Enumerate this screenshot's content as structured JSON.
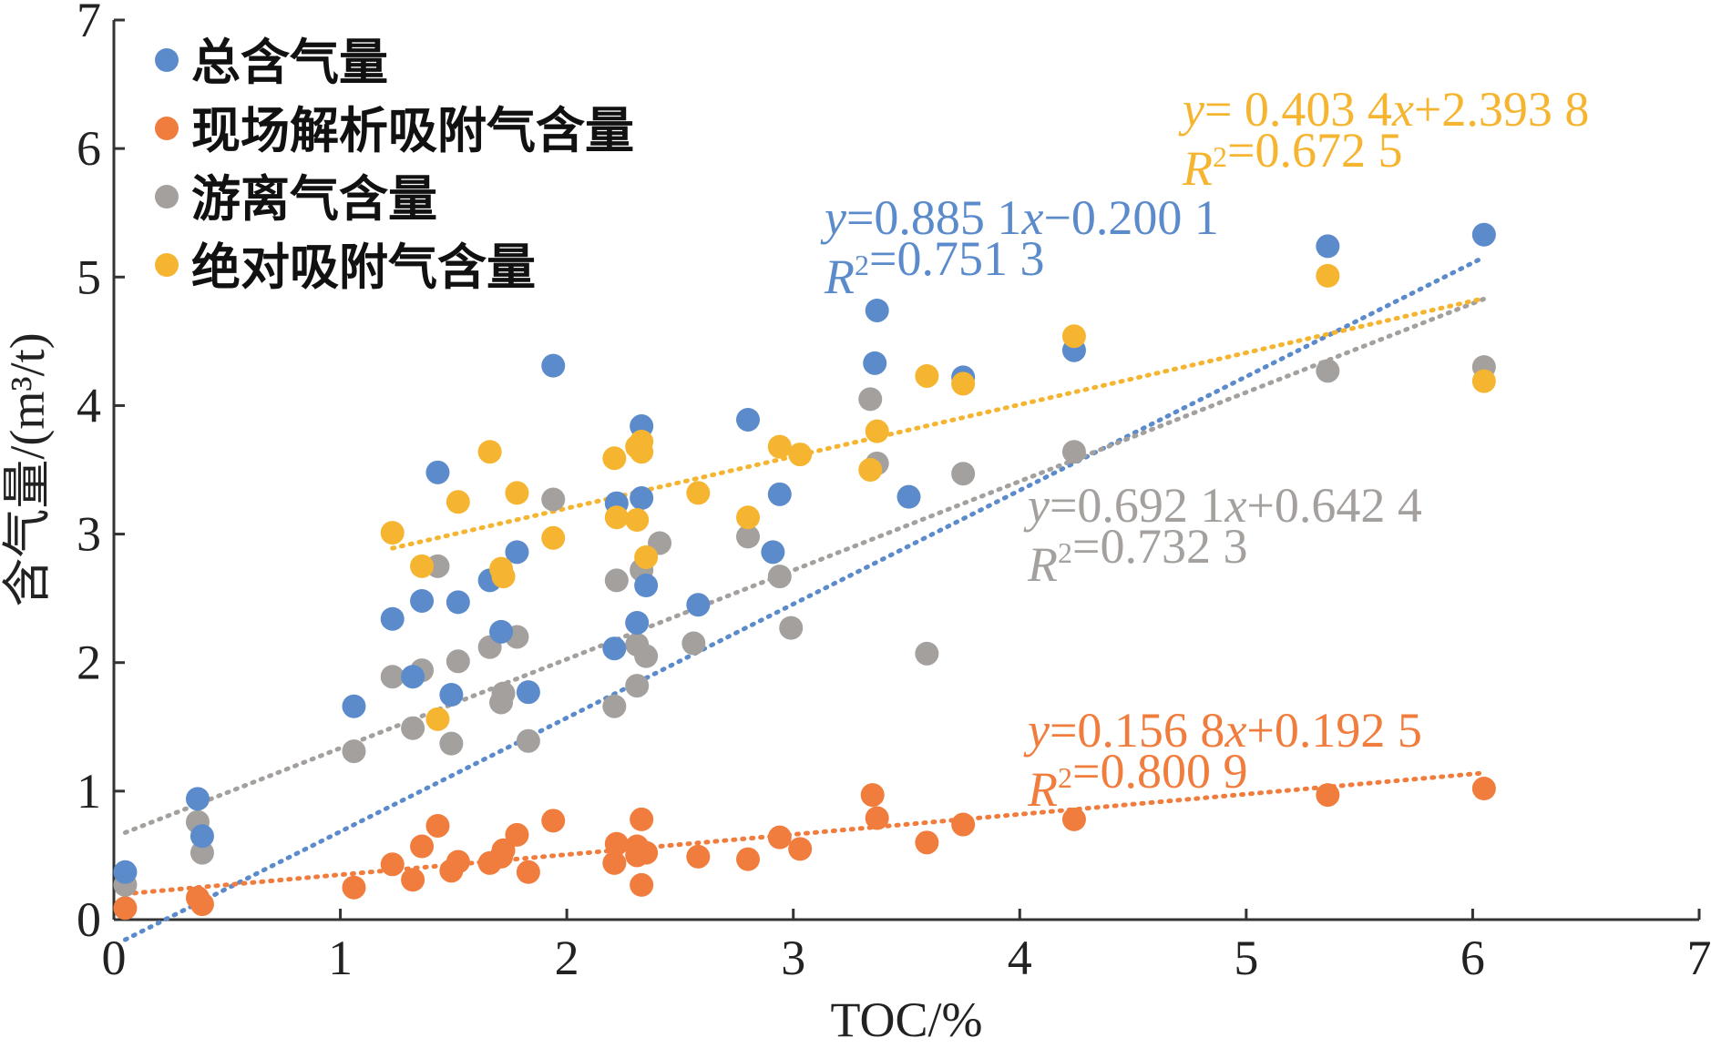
{
  "chart_data": {
    "type": "scatter",
    "xlabel": "TOC/%",
    "ylabel": "含气量/(m³/t)",
    "xlim": [
      0,
      7
    ],
    "ylim": [
      0,
      7
    ],
    "x_ticks": [
      "0",
      "1",
      "2",
      "3",
      "4",
      "5",
      "6",
      "7"
    ],
    "y_ticks": [
      "0",
      "1",
      "2",
      "3",
      "4",
      "5",
      "6",
      "7"
    ],
    "grid": false,
    "legend_position": "top-left",
    "series": [
      {
        "name": "总含气量",
        "color": "#5B8BCB",
        "points": [
          [
            0.05,
            0.37
          ],
          [
            0.37,
            0.94
          ],
          [
            0.39,
            0.65
          ],
          [
            1.06,
            1.66
          ],
          [
            1.23,
            2.34
          ],
          [
            1.32,
            1.89
          ],
          [
            1.36,
            2.48
          ],
          [
            1.43,
            3.48
          ],
          [
            1.49,
            1.75
          ],
          [
            1.52,
            2.47
          ],
          [
            1.66,
            2.64
          ],
          [
            1.71,
            2.24
          ],
          [
            1.78,
            2.86
          ],
          [
            1.83,
            1.77
          ],
          [
            1.94,
            4.31
          ],
          [
            2.21,
            2.11
          ],
          [
            2.22,
            3.24
          ],
          [
            2.31,
            2.31
          ],
          [
            2.33,
            3.84
          ],
          [
            2.33,
            3.28
          ],
          [
            2.35,
            2.6
          ],
          [
            2.58,
            2.45
          ],
          [
            2.8,
            3.89
          ],
          [
            2.91,
            2.86
          ],
          [
            2.94,
            3.31
          ],
          [
            3.36,
            4.33
          ],
          [
            3.37,
            4.74
          ],
          [
            3.51,
            3.29
          ],
          [
            3.75,
            4.22
          ],
          [
            4.24,
            4.43
          ],
          [
            5.36,
            5.24
          ],
          [
            6.05,
            5.33
          ]
        ],
        "fit": {
          "slope": 0.8851,
          "intercept": -0.2001,
          "x_range": [
            0.05,
            6.05
          ]
        },
        "equation": "y=0.885 1x−0.200 1",
        "r2": "R2=0.751 3"
      },
      {
        "name": "现场解析吸附气含量",
        "color": "#F07D3E",
        "points": [
          [
            0.05,
            0.09
          ],
          [
            0.37,
            0.17
          ],
          [
            0.39,
            0.12
          ],
          [
            1.06,
            0.25
          ],
          [
            1.23,
            0.43
          ],
          [
            1.32,
            0.31
          ],
          [
            1.36,
            0.57
          ],
          [
            1.43,
            0.73
          ],
          [
            1.49,
            0.38
          ],
          [
            1.52,
            0.45
          ],
          [
            1.66,
            0.44
          ],
          [
            1.71,
            0.49
          ],
          [
            1.72,
            0.54
          ],
          [
            1.78,
            0.66
          ],
          [
            1.83,
            0.37
          ],
          [
            1.94,
            0.77
          ],
          [
            2.21,
            0.44
          ],
          [
            2.22,
            0.59
          ],
          [
            2.31,
            0.5
          ],
          [
            2.31,
            0.57
          ],
          [
            2.33,
            0.78
          ],
          [
            2.33,
            0.27
          ],
          [
            2.35,
            0.52
          ],
          [
            2.58,
            0.49
          ],
          [
            2.8,
            0.47
          ],
          [
            2.94,
            0.64
          ],
          [
            3.03,
            0.55
          ],
          [
            3.35,
            0.97
          ],
          [
            3.37,
            0.79
          ],
          [
            3.59,
            0.6
          ],
          [
            3.75,
            0.74
          ],
          [
            4.24,
            0.78
          ],
          [
            5.36,
            0.97
          ],
          [
            6.05,
            1.02
          ]
        ],
        "fit": {
          "slope": 0.1568,
          "intercept": 0.1925,
          "x_range": [
            0.05,
            6.05
          ]
        },
        "equation": "y=0.156 8x+0.192 5",
        "r2": "R2=0.800 9"
      },
      {
        "name": "游离气含量",
        "color": "#A3A09E",
        "points": [
          [
            0.05,
            0.27
          ],
          [
            0.37,
            0.76
          ],
          [
            0.39,
            0.52
          ],
          [
            1.06,
            1.31
          ],
          [
            1.23,
            1.89
          ],
          [
            1.32,
            1.49
          ],
          [
            1.36,
            1.94
          ],
          [
            1.43,
            2.75
          ],
          [
            1.49,
            1.37
          ],
          [
            1.52,
            2.01
          ],
          [
            1.66,
            2.12
          ],
          [
            1.71,
            1.69
          ],
          [
            1.72,
            1.76
          ],
          [
            1.78,
            2.2
          ],
          [
            1.83,
            1.39
          ],
          [
            1.94,
            3.27
          ],
          [
            2.21,
            1.66
          ],
          [
            2.22,
            2.64
          ],
          [
            2.31,
            1.82
          ],
          [
            2.31,
            2.14
          ],
          [
            2.33,
            2.72
          ],
          [
            2.35,
            2.05
          ],
          [
            2.41,
            2.93
          ],
          [
            2.56,
            2.15
          ],
          [
            2.8,
            2.98
          ],
          [
            2.94,
            2.67
          ],
          [
            2.99,
            2.27
          ],
          [
            3.34,
            4.05
          ],
          [
            3.37,
            3.55
          ],
          [
            3.59,
            2.07
          ],
          [
            3.75,
            3.47
          ],
          [
            4.24,
            3.64
          ],
          [
            5.36,
            4.27
          ],
          [
            6.05,
            4.3
          ]
        ],
        "fit": {
          "slope": 0.6921,
          "intercept": 0.6424,
          "x_range": [
            0.05,
            6.05
          ]
        },
        "equation": "y=0.692 1x+0.642 4",
        "r2": "R2=0.732 3"
      },
      {
        "name": "绝对吸附气含量",
        "color": "#F5B530",
        "points": [
          [
            1.23,
            3.01
          ],
          [
            1.36,
            2.75
          ],
          [
            1.43,
            1.56
          ],
          [
            1.52,
            3.25
          ],
          [
            1.66,
            3.64
          ],
          [
            1.71,
            2.73
          ],
          [
            1.72,
            2.67
          ],
          [
            1.78,
            3.32
          ],
          [
            1.94,
            2.97
          ],
          [
            2.21,
            3.59
          ],
          [
            2.22,
            3.13
          ],
          [
            2.31,
            3.68
          ],
          [
            2.31,
            3.11
          ],
          [
            2.33,
            3.72
          ],
          [
            2.33,
            3.64
          ],
          [
            2.35,
            2.82
          ],
          [
            2.58,
            3.32
          ],
          [
            2.8,
            3.13
          ],
          [
            2.94,
            3.68
          ],
          [
            3.03,
            3.62
          ],
          [
            3.34,
            3.5
          ],
          [
            3.37,
            3.8
          ],
          [
            3.59,
            4.23
          ],
          [
            3.75,
            4.17
          ],
          [
            4.24,
            4.54
          ],
          [
            5.36,
            5.01
          ],
          [
            6.05,
            4.19
          ]
        ],
        "fit": {
          "slope": 0.4034,
          "intercept": 2.3938,
          "x_range": [
            1.23,
            6.05
          ]
        },
        "equation": "y= 0.403 4x+2.393 8",
        "r2": "R2=0.672 5"
      }
    ]
  }
}
